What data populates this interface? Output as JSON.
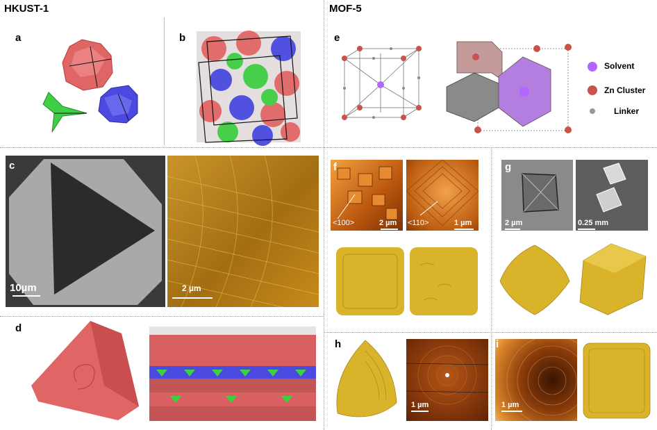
{
  "titles": {
    "left": "HKUST-1",
    "right": "MOF-5"
  },
  "panels": {
    "a": "a",
    "b": "b",
    "c": "c",
    "d": "d",
    "e": "e",
    "f": "f",
    "g": "g",
    "h": "h",
    "i": "i"
  },
  "scalebars": {
    "c_left": "10µm",
    "c_right": "2 µm",
    "f_left": "2 µm",
    "f_right": "1 µm",
    "g_left": "2 µm",
    "g_right": "0.25 mm",
    "h": "1 µm",
    "i": "1 µm"
  },
  "directions": {
    "f_left": "<100>",
    "f_right": "<110>"
  },
  "legend": {
    "solvent": "Solvent",
    "zn": "Zn Cluster",
    "linker": "Linker"
  },
  "colors": {
    "red": "#e06666",
    "green": "#3fcf45",
    "blue": "#4a4ae0",
    "gold": "#d9b42a",
    "purple": "#b366ff",
    "zn": "#c9524a"
  }
}
